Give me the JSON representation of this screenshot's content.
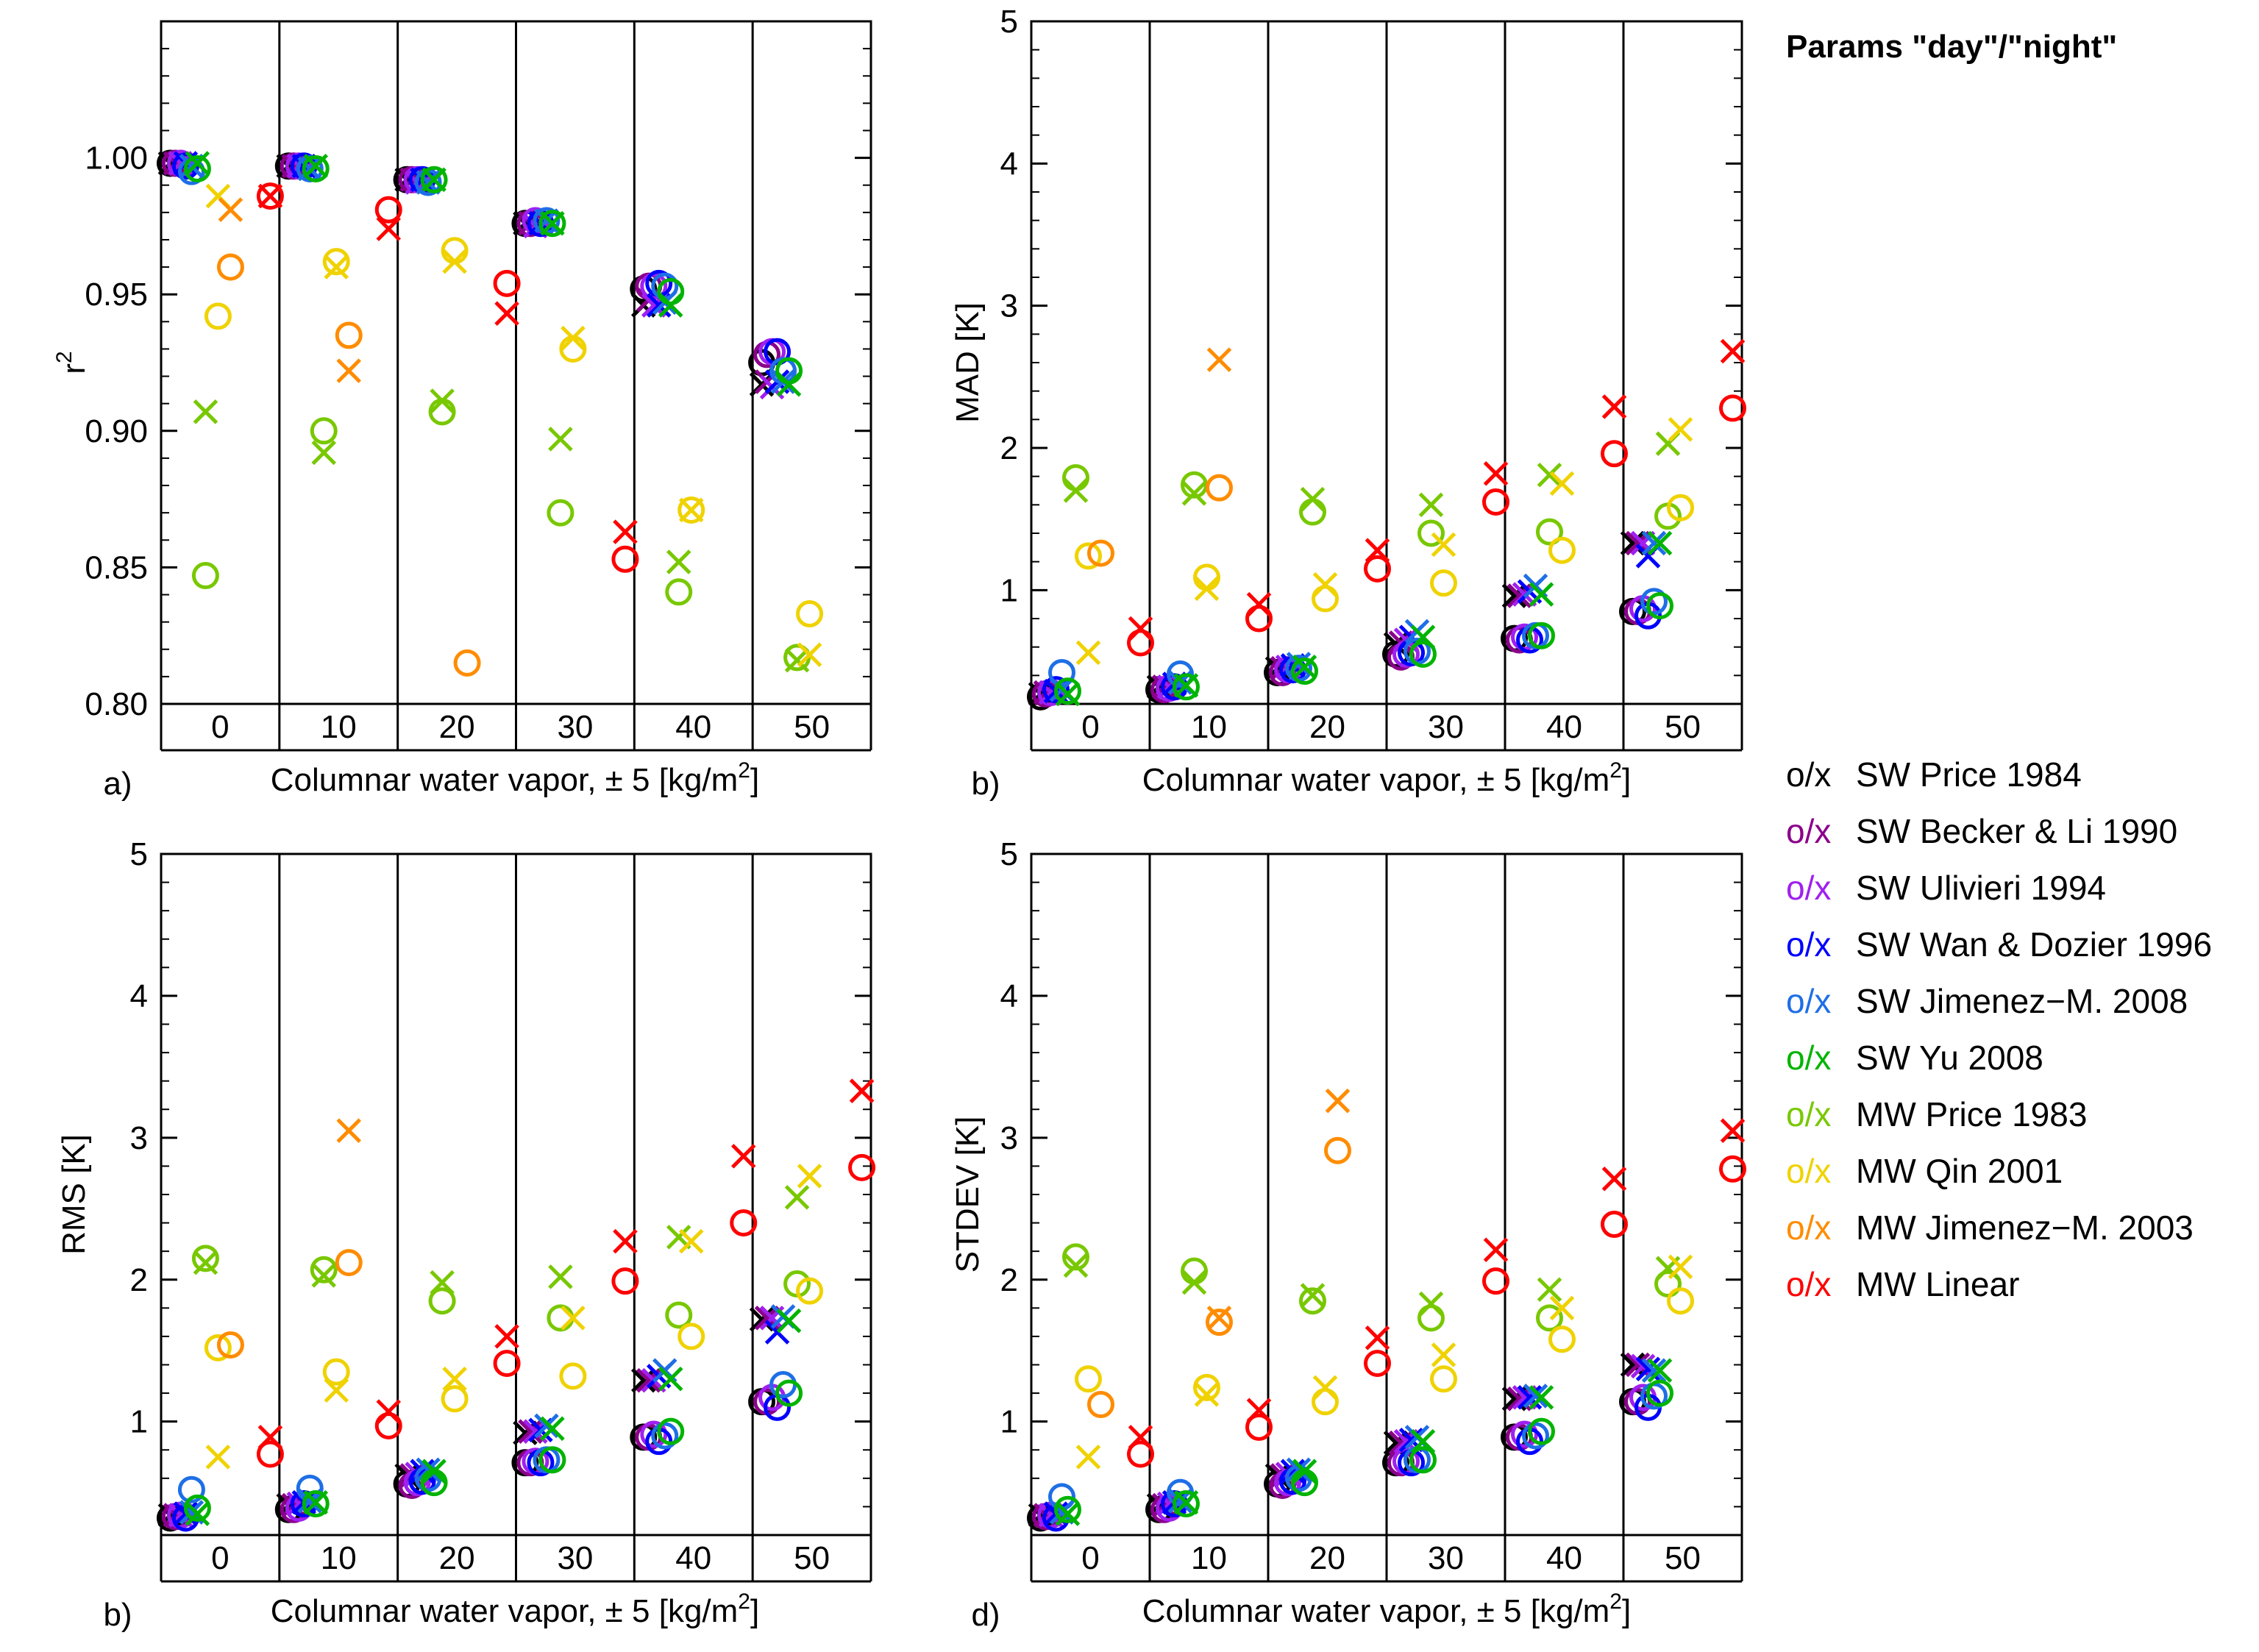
{
  "legend": {
    "title": "Params \"day\"/\"night\"",
    "marker_label": "o/x",
    "entries": [
      {
        "name": "SW Price 1984",
        "color": "#000000"
      },
      {
        "name": "SW Becker & Li 1990",
        "color": "#8B008B"
      },
      {
        "name": "SW Ulivieri 1994",
        "color": "#A020F0"
      },
      {
        "name": "SW Wan & Dozier 1996",
        "color": "#0000FF"
      },
      {
        "name": "SW Jimenez−M. 2008",
        "color": "#1E6FE6"
      },
      {
        "name": "SW Yu 2008",
        "color": "#00B400"
      },
      {
        "name": "MW Price 1983",
        "color": "#78C800"
      },
      {
        "name": "MW Qin 2001",
        "color": "#F0D200"
      },
      {
        "name": "MW Jimenez−M. 2003",
        "color": "#FF8C00"
      },
      {
        "name": "MW Linear",
        "color": "#FF0000"
      }
    ]
  },
  "chart_data": [
    {
      "type": "scatter",
      "panel_label": "a)",
      "ylabel": "r",
      "ylabel_sup": "2",
      "xlabel": "Columnar water vapor, ± 5 [kg/m",
      "xlabel_sup": "2",
      "xlabel_end": "]",
      "categories": [
        "0",
        "10",
        "20",
        "30",
        "40",
        "50"
      ],
      "ylim": [
        0.8,
        1.05
      ],
      "yticks": [
        0.8,
        0.85,
        0.9,
        0.95,
        1.0
      ],
      "ytick_labels": [
        "0.80",
        "0.85",
        "0.90",
        "0.95",
        "1.00"
      ],
      "series": [
        {
          "name": "SW Price 1984",
          "day": [
            0.998,
            0.997,
            0.992,
            0.976,
            0.952,
            0.925
          ],
          "night": [
            0.998,
            0.997,
            0.992,
            0.976,
            0.946,
            0.917
          ]
        },
        {
          "name": "SW Becker & Li 1990",
          "day": [
            0.998,
            0.997,
            0.992,
            0.976,
            0.953,
            0.928
          ],
          "night": [
            0.998,
            0.997,
            0.992,
            0.976,
            0.948,
            0.918
          ]
        },
        {
          "name": "SW Ulivieri 1994",
          "day": [
            0.998,
            0.997,
            0.992,
            0.977,
            0.953,
            0.929
          ],
          "night": [
            0.998,
            0.997,
            0.991,
            0.975,
            0.946,
            0.916
          ]
        },
        {
          "name": "SW Wan & Dozier 1996",
          "day": [
            0.997,
            0.997,
            0.992,
            0.976,
            0.954,
            0.929
          ],
          "night": [
            0.998,
            0.997,
            0.992,
            0.976,
            0.946,
            0.918
          ]
        },
        {
          "name": "SW Jimenez−M. 2008",
          "day": [
            0.995,
            0.996,
            0.991,
            0.977,
            0.953,
            0.922
          ],
          "night": [
            0.997,
            0.996,
            0.991,
            0.977,
            0.947,
            0.918
          ]
        },
        {
          "name": "SW Yu 2008",
          "day": [
            0.996,
            0.996,
            0.992,
            0.976,
            0.951,
            0.922
          ],
          "night": [
            0.998,
            0.997,
            0.992,
            0.976,
            0.946,
            0.917
          ]
        },
        {
          "name": "MW Price 1983",
          "day": [
            0.847,
            0.9,
            0.907,
            0.87,
            0.841,
            0.817
          ],
          "night": [
            0.907,
            0.892,
            0.911,
            0.897,
            0.852,
            0.816
          ]
        },
        {
          "name": "MW Qin 2001",
          "day": [
            0.942,
            0.962,
            0.966,
            0.93,
            0.871,
            0.833
          ],
          "night": [
            0.986,
            0.96,
            0.962,
            0.934,
            0.871,
            0.818
          ]
        },
        {
          "name": "MW Jimenez−M. 2003",
          "day": [
            0.96,
            0.935,
            0.815,
            null,
            null,
            null
          ],
          "night": [
            0.981,
            0.922,
            null,
            null,
            null,
            null
          ]
        },
        {
          "name": "MW Linear",
          "day": [
            0.986,
            0.981,
            0.954,
            0.853,
            null,
            null
          ],
          "night": [
            0.986,
            0.974,
            0.943,
            0.863,
            null,
            null
          ]
        }
      ]
    },
    {
      "type": "scatter",
      "panel_label": "b)",
      "ylabel": "MAD [K]",
      "xlabel": "Columnar water vapor, ± 5 [kg/m",
      "xlabel_sup": "2",
      "xlabel_end": "]",
      "categories": [
        "0",
        "10",
        "20",
        "30",
        "40",
        "50"
      ],
      "ylim": [
        0.2,
        5
      ],
      "yticks": [
        1,
        2,
        3,
        4,
        5
      ],
      "ytick_labels": [
        "1",
        "2",
        "3",
        "4",
        "5"
      ],
      "series": [
        {
          "name": "SW Price 1984",
          "day": [
            0.25,
            0.3,
            0.42,
            0.55,
            0.66,
            0.85
          ],
          "night": [
            0.27,
            0.32,
            0.45,
            0.62,
            0.96,
            1.33
          ]
        },
        {
          "name": "SW Becker & Li 1990",
          "day": [
            0.27,
            0.3,
            0.42,
            0.53,
            0.65,
            0.85
          ],
          "night": [
            0.28,
            0.32,
            0.45,
            0.63,
            0.96,
            1.33
          ]
        },
        {
          "name": "SW Ulivieri 1994",
          "day": [
            0.28,
            0.31,
            0.44,
            0.55,
            0.67,
            0.87
          ],
          "night": [
            0.28,
            0.32,
            0.46,
            0.65,
            0.97,
            1.33
          ]
        },
        {
          "name": "SW Wan & Dozier 1996",
          "day": [
            0.3,
            0.32,
            0.44,
            0.56,
            0.65,
            0.82
          ],
          "night": [
            0.29,
            0.34,
            0.47,
            0.67,
            0.99,
            1.24
          ]
        },
        {
          "name": "SW Jimenez−M. 2008",
          "day": [
            0.42,
            0.41,
            0.45,
            0.57,
            0.68,
            0.92
          ],
          "night": [
            0.3,
            0.35,
            0.48,
            0.71,
            1.03,
            1.33
          ]
        },
        {
          "name": "SW Yu 2008",
          "day": [
            0.29,
            0.32,
            0.43,
            0.55,
            0.68,
            0.89
          ],
          "night": [
            0.27,
            0.33,
            0.46,
            0.67,
            0.97,
            1.33
          ]
        },
        {
          "name": "MW Price 1983",
          "day": [
            1.79,
            1.74,
            1.55,
            1.4,
            1.41,
            1.52
          ],
          "night": [
            1.7,
            1.68,
            1.64,
            1.6,
            1.81,
            2.03
          ]
        },
        {
          "name": "MW Qin 2001",
          "day": [
            1.24,
            1.09,
            0.94,
            1.05,
            1.28,
            1.58
          ],
          "night": [
            0.56,
            1.01,
            1.04,
            1.32,
            1.75,
            2.13
          ]
        },
        {
          "name": "MW Jimenez−M. 2003",
          "day": [
            1.26,
            1.72,
            null,
            null,
            null,
            null
          ],
          "night": [
            null,
            2.62,
            null,
            null,
            null,
            null
          ]
        },
        {
          "name": "MW Linear",
          "day": [
            0.63,
            0.8,
            1.15,
            1.62,
            1.96,
            2.28
          ],
          "night": [
            0.73,
            0.9,
            1.28,
            1.82,
            2.29,
            2.68
          ]
        }
      ]
    },
    {
      "type": "scatter",
      "panel_label": "b)",
      "ylabel": "RMS [K]",
      "xlabel": "Columnar water vapor, ± 5 [kg/m",
      "xlabel_sup": "2",
      "xlabel_end": "]",
      "categories": [
        "0",
        "10",
        "20",
        "30",
        "40",
        "50"
      ],
      "ylim": [
        0.2,
        5
      ],
      "yticks": [
        1,
        2,
        3,
        4,
        5
      ],
      "ytick_labels": [
        "1",
        "2",
        "3",
        "4",
        "5"
      ],
      "series": [
        {
          "name": "SW Price 1984",
          "day": [
            0.32,
            0.38,
            0.56,
            0.71,
            0.89,
            1.14
          ],
          "night": [
            0.34,
            0.41,
            0.62,
            0.92,
            1.29,
            1.72
          ]
        },
        {
          "name": "SW Becker & Li 1990",
          "day": [
            0.33,
            0.38,
            0.55,
            0.71,
            0.89,
            1.14
          ],
          "night": [
            0.34,
            0.41,
            0.62,
            0.93,
            1.29,
            1.73
          ]
        },
        {
          "name": "SW Ulivieri 1994",
          "day": [
            0.34,
            0.39,
            0.57,
            0.72,
            0.91,
            1.17
          ],
          "night": [
            0.34,
            0.42,
            0.63,
            0.93,
            1.29,
            1.73
          ]
        },
        {
          "name": "SW Wan & Dozier 1996",
          "day": [
            0.32,
            0.42,
            0.58,
            0.71,
            0.86,
            1.1
          ],
          "night": [
            0.35,
            0.43,
            0.65,
            0.94,
            1.32,
            1.63
          ]
        },
        {
          "name": "SW Jimenez−M. 2008",
          "day": [
            0.52,
            0.53,
            0.6,
            0.73,
            0.9,
            1.26
          ],
          "night": [
            0.36,
            0.44,
            0.66,
            0.97,
            1.36,
            1.74
          ]
        },
        {
          "name": "SW Yu 2008",
          "day": [
            0.39,
            0.42,
            0.57,
            0.73,
            0.93,
            1.2
          ],
          "night": [
            0.35,
            0.43,
            0.65,
            0.95,
            1.3,
            1.71
          ]
        },
        {
          "name": "MW Price 1983",
          "day": [
            2.15,
            2.07,
            1.85,
            1.73,
            1.75,
            1.97
          ],
          "night": [
            2.12,
            2.03,
            1.98,
            2.02,
            2.3,
            2.58
          ]
        },
        {
          "name": "MW Qin 2001",
          "day": [
            1.52,
            1.35,
            1.16,
            1.32,
            1.6,
            1.92
          ],
          "night": [
            0.75,
            1.22,
            1.3,
            1.73,
            2.27,
            2.73
          ]
        },
        {
          "name": "MW Jimenez−M. 2003",
          "day": [
            1.54,
            2.12,
            null,
            null,
            null,
            null
          ],
          "night": [
            null,
            3.05,
            null,
            null,
            null,
            null
          ]
        },
        {
          "name": "MW Linear",
          "day": [
            0.77,
            0.97,
            1.41,
            1.99,
            2.4,
            2.79
          ],
          "night": [
            0.89,
            1.07,
            1.6,
            2.27,
            2.87,
            3.33
          ]
        }
      ]
    },
    {
      "type": "scatter",
      "panel_label": "d)",
      "ylabel": "STDEV [K]",
      "xlabel": "Columnar water vapor, ± 5 [kg/m",
      "xlabel_sup": "2",
      "xlabel_end": "]",
      "categories": [
        "0",
        "10",
        "20",
        "30",
        "40",
        "50"
      ],
      "ylim": [
        0.2,
        5
      ],
      "yticks": [
        1,
        2,
        3,
        4,
        5
      ],
      "ytick_labels": [
        "1",
        "2",
        "3",
        "4",
        "5"
      ],
      "series": [
        {
          "name": "SW Price 1984",
          "day": [
            0.32,
            0.38,
            0.56,
            0.71,
            0.89,
            1.14
          ],
          "night": [
            0.34,
            0.41,
            0.62,
            0.85,
            1.16,
            1.4
          ]
        },
        {
          "name": "SW Becker & Li 1990",
          "day": [
            0.33,
            0.38,
            0.55,
            0.71,
            0.89,
            1.14
          ],
          "night": [
            0.34,
            0.41,
            0.62,
            0.85,
            1.16,
            1.4
          ]
        },
        {
          "name": "SW Ulivieri 1994",
          "day": [
            0.34,
            0.39,
            0.57,
            0.72,
            0.91,
            1.17
          ],
          "night": [
            0.34,
            0.42,
            0.63,
            0.86,
            1.17,
            1.39
          ]
        },
        {
          "name": "SW Wan & Dozier 1996",
          "day": [
            0.32,
            0.42,
            0.58,
            0.71,
            0.86,
            1.1
          ],
          "night": [
            0.35,
            0.43,
            0.65,
            0.87,
            1.17,
            1.37
          ]
        },
        {
          "name": "SW Jimenez−M. 2008",
          "day": [
            0.47,
            0.5,
            0.6,
            0.73,
            0.9,
            1.18
          ],
          "night": [
            0.36,
            0.44,
            0.66,
            0.89,
            1.18,
            1.36
          ]
        },
        {
          "name": "SW Yu 2008",
          "day": [
            0.38,
            0.42,
            0.57,
            0.73,
            0.93,
            1.2
          ],
          "night": [
            0.35,
            0.43,
            0.65,
            0.86,
            1.17,
            1.36
          ]
        },
        {
          "name": "MW Price 1983",
          "day": [
            2.16,
            2.06,
            1.85,
            1.73,
            1.73,
            1.97
          ],
          "night": [
            2.1,
            1.98,
            1.89,
            1.83,
            1.93,
            2.08
          ]
        },
        {
          "name": "MW Qin 2001",
          "day": [
            1.3,
            1.24,
            1.14,
            1.3,
            1.58,
            1.85
          ],
          "night": [
            0.75,
            1.19,
            1.24,
            1.47,
            1.8,
            2.09
          ]
        },
        {
          "name": "MW Jimenez−M. 2003",
          "day": [
            1.12,
            1.7,
            2.91,
            null,
            null,
            null
          ],
          "night": [
            null,
            1.73,
            3.26,
            null,
            null,
            null
          ]
        },
        {
          "name": "MW Linear",
          "day": [
            0.77,
            0.96,
            1.41,
            1.99,
            2.39,
            2.78
          ],
          "night": [
            0.89,
            1.08,
            1.59,
            2.21,
            2.71,
            3.05
          ]
        }
      ]
    }
  ]
}
